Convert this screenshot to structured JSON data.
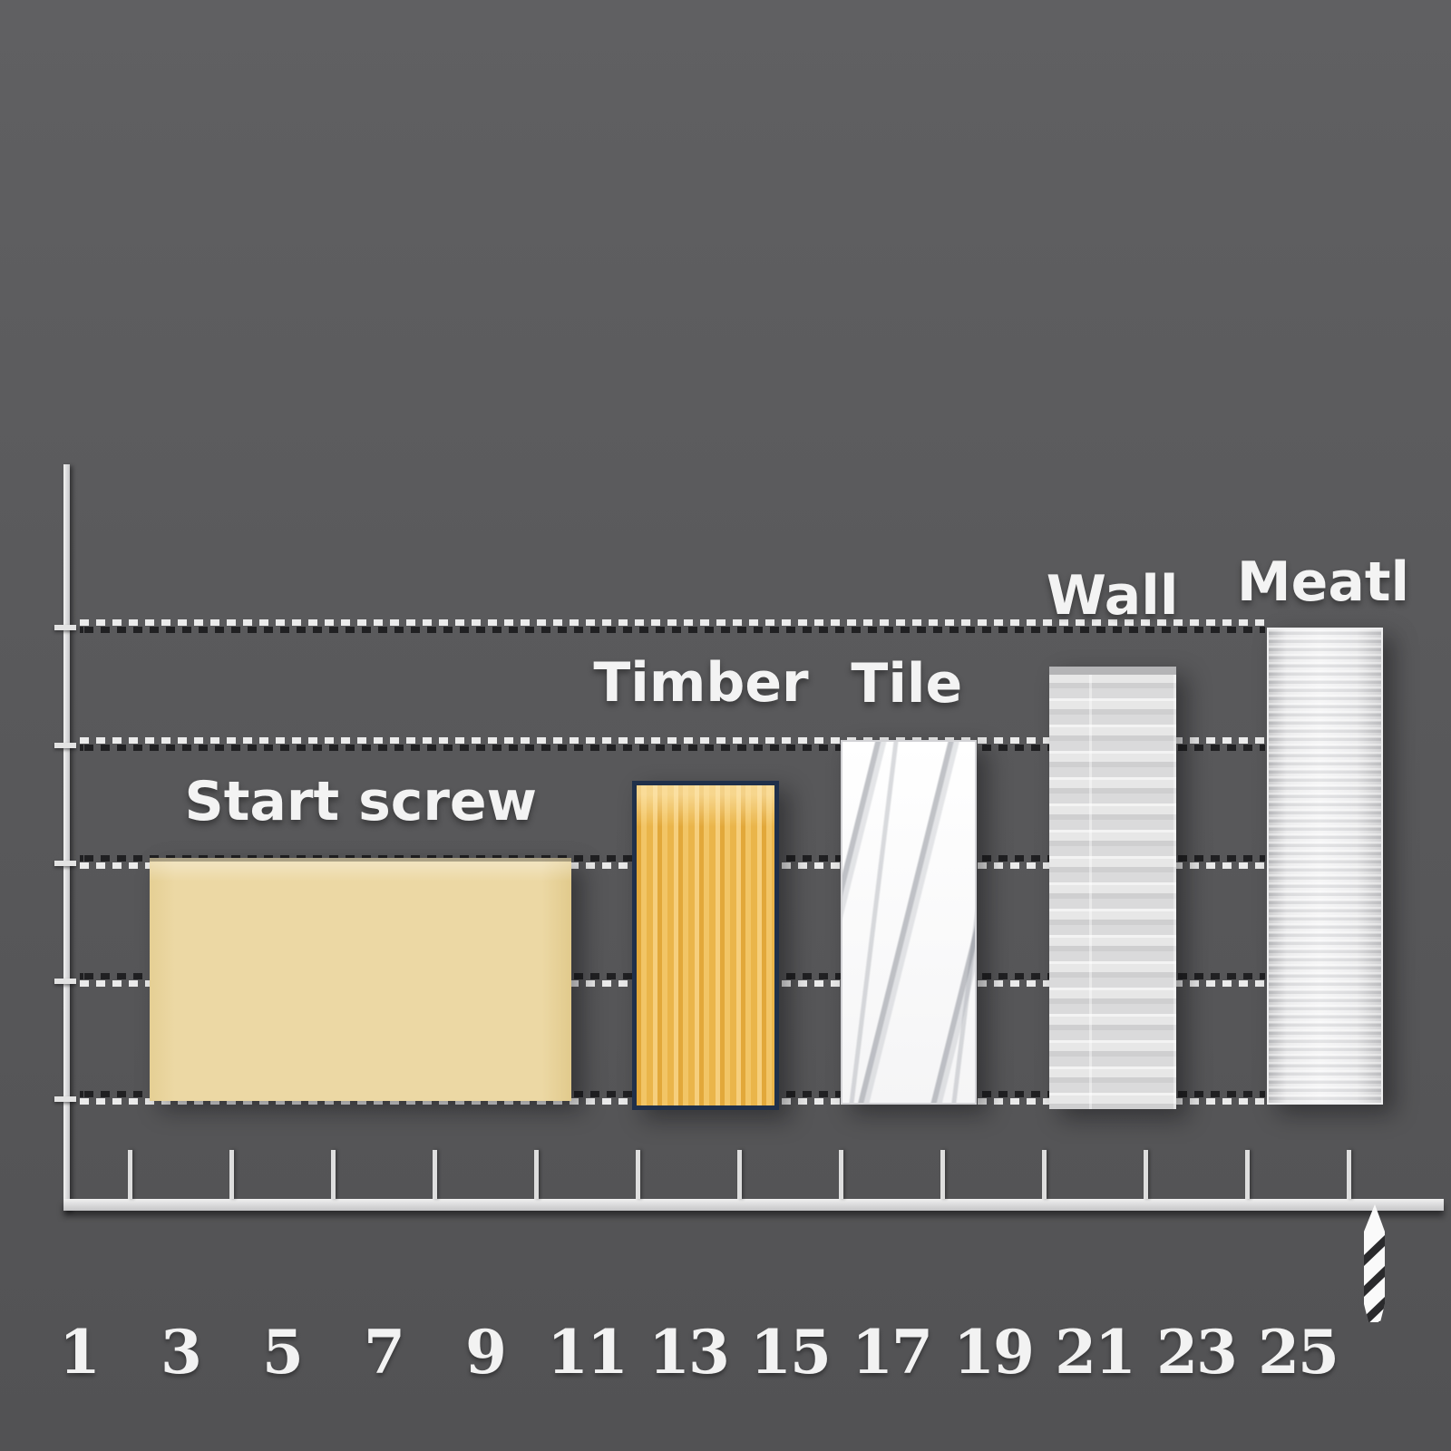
{
  "chart_data": {
    "type": "bar",
    "title": "",
    "xlabel": "",
    "ylabel": "",
    "x_axis": {
      "tick_labels": [
        "1",
        "3",
        "5",
        "7",
        "9",
        "11",
        "13",
        "15",
        "17",
        "19",
        "21",
        "23",
        "25"
      ],
      "end_icon": "drill-bit-icon"
    },
    "y_axis": {
      "tick_labels": [],
      "gridline_count": 5,
      "gridline_style": "dashed"
    },
    "bars": [
      {
        "label": "Start screw",
        "x_start": 2.4,
        "x_end": 10.7,
        "height": 2.05,
        "texture": "wheat"
      },
      {
        "label": "Timber",
        "x_start": 11.9,
        "x_end": 14.6,
        "height": 2.7,
        "texture": "wood"
      },
      {
        "label": "Tile",
        "x_start": 16.0,
        "x_end": 18.6,
        "height": 3.05,
        "texture": "marble"
      },
      {
        "label": "Wall",
        "x_start": 20.1,
        "x_end": 22.6,
        "height": 3.67,
        "texture": "brick"
      },
      {
        "label": "Meatl",
        "x_start": 24.4,
        "x_end": 26.6,
        "height": 4.0,
        "texture": "metal"
      }
    ],
    "legend_position": "none",
    "grid_on": true
  },
  "colors": {
    "background": "#59595b",
    "text": "#f3f3f3",
    "axis": "#d9d9d9",
    "grid_light": "#ebebeb",
    "grid_dark": "#202022",
    "wheat": "#ecd8a4",
    "wood": "#efbb50",
    "wood_border": "#20304a",
    "marble": "#f5f5f6",
    "brick": "#d5d5d6",
    "metal": "#e9e9ea",
    "drill_white": "#fafafa",
    "drill_dark": "#2a2a2c"
  }
}
